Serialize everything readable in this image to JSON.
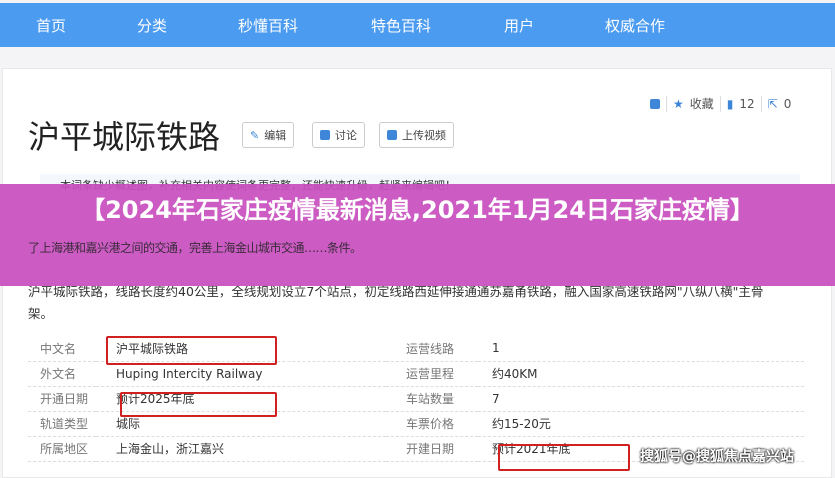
{
  "nav": [
    "首页",
    "分类",
    "秒懂百科",
    "特色百科",
    "用户",
    "权威合作"
  ],
  "title": "沪平城际铁路",
  "buttons": {
    "edit": "编辑",
    "discuss": "讨论",
    "upload": "上传视频"
  },
  "actions": {
    "favorite": "收藏",
    "likes": "12",
    "shares": "0"
  },
  "note": "本词条缺少概述图，补充相关内容使词条更完整，还能快速升级，赶紧来编辑吧！",
  "para1": "了上海港和嘉兴港之间的交通，完善上海金山城市交通……条件。",
  "para2": "沪平城际铁路，线路长度约40公里，全线规划设立7个站点，初定线路西延伸接通通苏嘉甬铁路，融入国家高速铁路网\"八纵八横\"主骨架。",
  "banner": "【2024年石家庄疫情最新消息,2021年1月24日石家庄疫情】",
  "info": [
    {
      "k": "中文名",
      "v": "沪平城际铁路",
      "k2": "运营线路",
      "v2": "1"
    },
    {
      "k": "外文名",
      "v": "Huping Intercity Railway",
      "k2": "运营里程",
      "v2": "约40KM"
    },
    {
      "k": "开通日期",
      "v": "预计2025年底",
      "k2": "车站数量",
      "v2": "7"
    },
    {
      "k": "轨道类型",
      "v": "城际",
      "k2": "车票价格",
      "v2": "约15-20元"
    },
    {
      "k": "所属地区",
      "v": "上海金山，浙江嘉兴",
      "k2": "开建日期",
      "v2": "预计2021年底"
    }
  ],
  "watermark": "搜狐号@搜狐焦点嘉兴站"
}
